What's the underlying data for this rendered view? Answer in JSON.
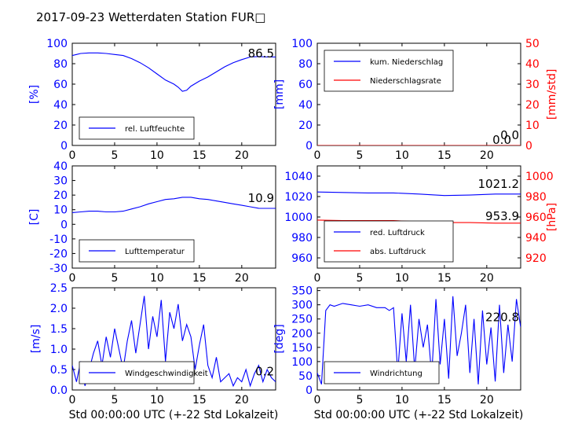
{
  "header": {
    "title": "2017-09-23 Wetterdaten Station FUR□",
    "xlabel": "Std 00:00:00 UTC (+-22 Std Lokalzeit)"
  },
  "colors": {
    "line1": "#0000ff",
    "line2": "#ff0000",
    "axis_left": "#0000ff",
    "axis_right": "#ff0000"
  },
  "chart_data": [
    {
      "id": "humidity",
      "type": "line",
      "ylabel": "[%]",
      "ylim": [
        0,
        100
      ],
      "yticks": [
        0,
        20,
        40,
        60,
        80,
        100
      ],
      "xlim": [
        0,
        24
      ],
      "xticks": [
        0,
        5,
        10,
        15,
        20
      ],
      "legend": "bottom-left",
      "current_value": "86.5",
      "series": [
        {
          "name": "rel. Luftfeuchte",
          "color": "#0000ff",
          "x": [
            0,
            0.5,
            1,
            2,
            3,
            4,
            5,
            6,
            7,
            8,
            9,
            10,
            11,
            12,
            12.5,
            13,
            13.5,
            14,
            15,
            16,
            17,
            18,
            19,
            20,
            21,
            22,
            23,
            24
          ],
          "y": [
            88,
            89,
            90,
            90.5,
            90.5,
            90,
            89,
            88,
            85,
            81,
            76,
            70,
            64,
            60,
            57,
            53,
            54,
            58,
            63,
            67,
            72,
            77,
            81,
            84,
            86.5,
            87,
            86.5,
            86.5
          ]
        }
      ]
    },
    {
      "id": "precipitation",
      "type": "line",
      "ylabel": "[mm]",
      "ylim": [
        0,
        100
      ],
      "yticks": [
        0,
        20,
        40,
        60,
        80,
        100
      ],
      "y2label": "[mm/std]",
      "y2lim": [
        0,
        50
      ],
      "y2ticks": [
        0,
        10,
        20,
        30,
        40,
        50
      ],
      "xlim": [
        0,
        24
      ],
      "xticks": [
        0,
        5,
        10,
        15,
        20
      ],
      "legend": "top-left",
      "current_value": "0.0",
      "current_value2": "0.0",
      "series": [
        {
          "name": "kum. Niederschlag",
          "color": "#0000ff",
          "x": [
            0,
            24
          ],
          "y": [
            0,
            0
          ]
        },
        {
          "name": "Niederschlagsrate",
          "color": "#ff0000",
          "axis": "right",
          "x": [
            0,
            24
          ],
          "y": [
            0,
            0
          ]
        }
      ]
    },
    {
      "id": "temperature",
      "type": "line",
      "ylabel": "[C]",
      "ylim": [
        -30,
        40
      ],
      "yticks": [
        -30,
        -20,
        -10,
        0,
        10,
        20,
        30,
        40
      ],
      "xlim": [
        0,
        24
      ],
      "xticks": [
        0,
        5,
        10,
        15,
        20
      ],
      "legend": "bottom-left",
      "current_value": "10.9",
      "series": [
        {
          "name": "Lufttemperatur",
          "color": "#0000ff",
          "x": [
            0,
            1,
            2,
            3,
            4,
            5,
            6,
            7,
            8,
            9,
            10,
            11,
            12,
            13,
            14,
            15,
            16,
            17,
            18,
            19,
            20,
            21,
            22,
            23,
            24
          ],
          "y": [
            8,
            8.5,
            9,
            9,
            8.5,
            8.5,
            9,
            10.5,
            12,
            14,
            15.5,
            17,
            17.5,
            18.5,
            18.5,
            17.5,
            17,
            16,
            15,
            14,
            13,
            12,
            11,
            10.9,
            10.9
          ]
        }
      ]
    },
    {
      "id": "pressure",
      "type": "line",
      "ylabel": "",
      "ylim": [
        950,
        1050
      ],
      "yticks": [
        960,
        980,
        1000,
        1020,
        1040
      ],
      "y2label": "[hPa]",
      "y2lim": [
        910,
        1010
      ],
      "y2ticks": [
        920,
        940,
        960,
        980,
        1000
      ],
      "xlim": [
        0,
        24
      ],
      "xticks": [
        0,
        5,
        10,
        15,
        20
      ],
      "legend": "bottom-left",
      "current_value": "1021.2",
      "current_value2": "953.9",
      "series": [
        {
          "name": "red. Luftdruck",
          "color": "#0000ff",
          "x": [
            0,
            3,
            6,
            9,
            12,
            15,
            18,
            21,
            24
          ],
          "y": [
            1024.5,
            1024,
            1023.5,
            1023.5,
            1022.5,
            1021,
            1021.5,
            1022.5,
            1022.5
          ]
        },
        {
          "name": "abs. Luftdruck",
          "color": "#ff0000",
          "axis": "right",
          "x": [
            0,
            3,
            6,
            9,
            12,
            15,
            18,
            21,
            24
          ],
          "y": [
            957,
            956.5,
            956.5,
            956.5,
            955.5,
            954.5,
            954.5,
            954,
            954
          ]
        }
      ]
    },
    {
      "id": "windspeed",
      "type": "line",
      "ylabel": "[m/s]",
      "ylim": [
        0,
        2.5
      ],
      "yticks": [
        0.0,
        0.5,
        1.0,
        1.5,
        2.0,
        2.5
      ],
      "xlim": [
        0,
        24
      ],
      "xticks": [
        0,
        5,
        10,
        15,
        20
      ],
      "legend": "bottom-left",
      "current_value": "0.2",
      "series": [
        {
          "name": "Windgeschwindigkeit",
          "color": "#0000ff",
          "x": [
            0,
            0.5,
            1,
            1.5,
            2,
            2.5,
            3,
            3.5,
            4,
            4.5,
            5,
            5.5,
            6,
            6.5,
            7,
            7.5,
            8,
            8.5,
            9,
            9.5,
            10,
            10.5,
            11,
            11.5,
            12,
            12.5,
            13,
            13.5,
            14,
            14.5,
            15,
            15.5,
            16,
            16.5,
            17,
            17.5,
            18,
            18.5,
            19,
            19.5,
            20,
            20.5,
            21,
            21.5,
            22,
            22.5,
            23,
            23.5,
            24
          ],
          "y": [
            0.6,
            0.2,
            0.7,
            0.1,
            0.5,
            0.9,
            1.2,
            0.6,
            1.3,
            0.8,
            1.5,
            1.0,
            0.5,
            1.2,
            1.7,
            0.9,
            1.6,
            2.3,
            1.0,
            1.8,
            1.3,
            2.2,
            0.7,
            1.9,
            1.5,
            2.1,
            1.2,
            1.6,
            1.3,
            0.5,
            1.1,
            1.6,
            0.6,
            0.3,
            0.8,
            0.2,
            0.3,
            0.4,
            0.1,
            0.3,
            0.2,
            0.5,
            0.1,
            0.4,
            0.6,
            0.2,
            0.5,
            0.3,
            0.2
          ]
        }
      ]
    },
    {
      "id": "winddirection",
      "type": "line",
      "ylabel": "[deg]",
      "ylim": [
        0,
        360
      ],
      "yticks": [
        0,
        50,
        100,
        150,
        200,
        250,
        300,
        350
      ],
      "xlim": [
        0,
        24
      ],
      "xticks": [
        0,
        5,
        10,
        15,
        20
      ],
      "legend": "bottom-left",
      "current_value": "220.8",
      "series": [
        {
          "name": "Windrichtung",
          "color": "#0000ff",
          "x": [
            0,
            0.5,
            1,
            1.5,
            2,
            3,
            4,
            5,
            6,
            7,
            8,
            8.5,
            9,
            9.5,
            10,
            10.5,
            11,
            11.5,
            12,
            12.5,
            13,
            13.5,
            14,
            14.5,
            15,
            15.5,
            16,
            16.5,
            17,
            17.5,
            18,
            18.5,
            19,
            19.5,
            20,
            20.5,
            21,
            21.5,
            22,
            22.5,
            23,
            23.5,
            24
          ],
          "y": [
            60,
            20,
            280,
            300,
            295,
            305,
            300,
            295,
            300,
            290,
            290,
            280,
            290,
            60,
            270,
            100,
            300,
            70,
            250,
            150,
            230,
            50,
            320,
            90,
            250,
            40,
            330,
            120,
            200,
            300,
            60,
            250,
            20,
            280,
            90,
            220,
            30,
            300,
            60,
            230,
            100,
            320,
            220.8
          ]
        }
      ]
    }
  ]
}
